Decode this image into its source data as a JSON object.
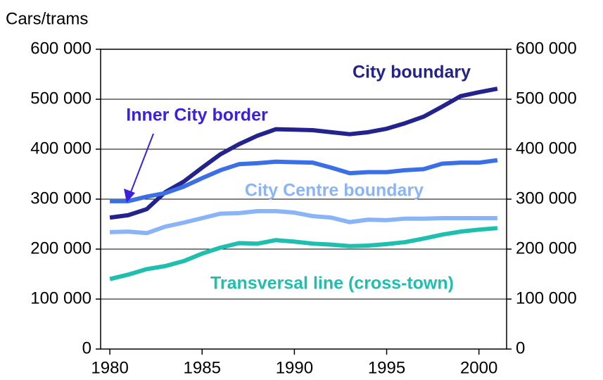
{
  "chart_data": {
    "type": "line",
    "ylabel": "Cars/trams",
    "x": [
      1980,
      1981,
      1982,
      1983,
      1984,
      1985,
      1986,
      1987,
      1988,
      1989,
      1990,
      1991,
      1992,
      1993,
      1994,
      1995,
      1996,
      1997,
      1998,
      1999,
      2000,
      2001
    ],
    "xlim": [
      1979.5,
      2001.5
    ],
    "xticks": [
      1980,
      1985,
      1990,
      1995,
      2000
    ],
    "ylim": [
      0,
      600000
    ],
    "yticks": [
      0,
      {
        "value": 100000,
        "label": "100 000"
      },
      {
        "value": 200000,
        "label": "200 000"
      },
      {
        "value": 300000,
        "label": "300 000"
      },
      {
        "value": 400000,
        "label": "400 000"
      },
      {
        "value": 500000,
        "label": "500 000"
      },
      {
        "value": 600000,
        "label": "600 000"
      }
    ],
    "y2lim": [
      0,
      600000
    ],
    "y2ticks": [
      0,
      {
        "value": 100000,
        "label": "100 000"
      },
      {
        "value": 200000,
        "label": "200 000"
      },
      {
        "value": 300000,
        "label": "300 000"
      },
      {
        "value": 400000,
        "label": "400 000"
      },
      {
        "value": 500000,
        "label": "500 000"
      },
      {
        "value": 600000,
        "label": "600 000"
      }
    ],
    "grid": true,
    "series": [
      {
        "name": "City boundary",
        "color": "#23238e",
        "values": [
          263000,
          268000,
          280000,
          314000,
          335000,
          363000,
          390000,
          410000,
          427000,
          440000,
          439000,
          438000,
          434000,
          430000,
          434000,
          441000,
          452000,
          465000,
          485000,
          506000,
          514000,
          521000
        ]
      },
      {
        "name": "Inner City border",
        "color": "#3b6fe6",
        "values": [
          296000,
          296000,
          305000,
          312000,
          325000,
          342000,
          358000,
          370000,
          372000,
          375000,
          374000,
          373000,
          363000,
          352000,
          354000,
          354000,
          358000,
          360000,
          371000,
          373000,
          373000,
          378000
        ]
      },
      {
        "name": "City Centre boundary",
        "color": "#8ab4f8",
        "values": [
          234000,
          235000,
          232000,
          245000,
          253000,
          262000,
          271000,
          272000,
          276000,
          276000,
          273000,
          266000,
          263000,
          254000,
          259000,
          258000,
          261000,
          261000,
          262000,
          262000,
          262000,
          262000
        ]
      },
      {
        "name": "Transversal line (cross-town)",
        "color": "#1fbfb0",
        "values": [
          140000,
          149000,
          160000,
          166000,
          176000,
          191000,
          203000,
          212000,
          211000,
          218000,
          215000,
          211000,
          209000,
          206000,
          207000,
          210000,
          214000,
          221000,
          229000,
          235000,
          239000,
          242000
        ]
      }
    ]
  }
}
